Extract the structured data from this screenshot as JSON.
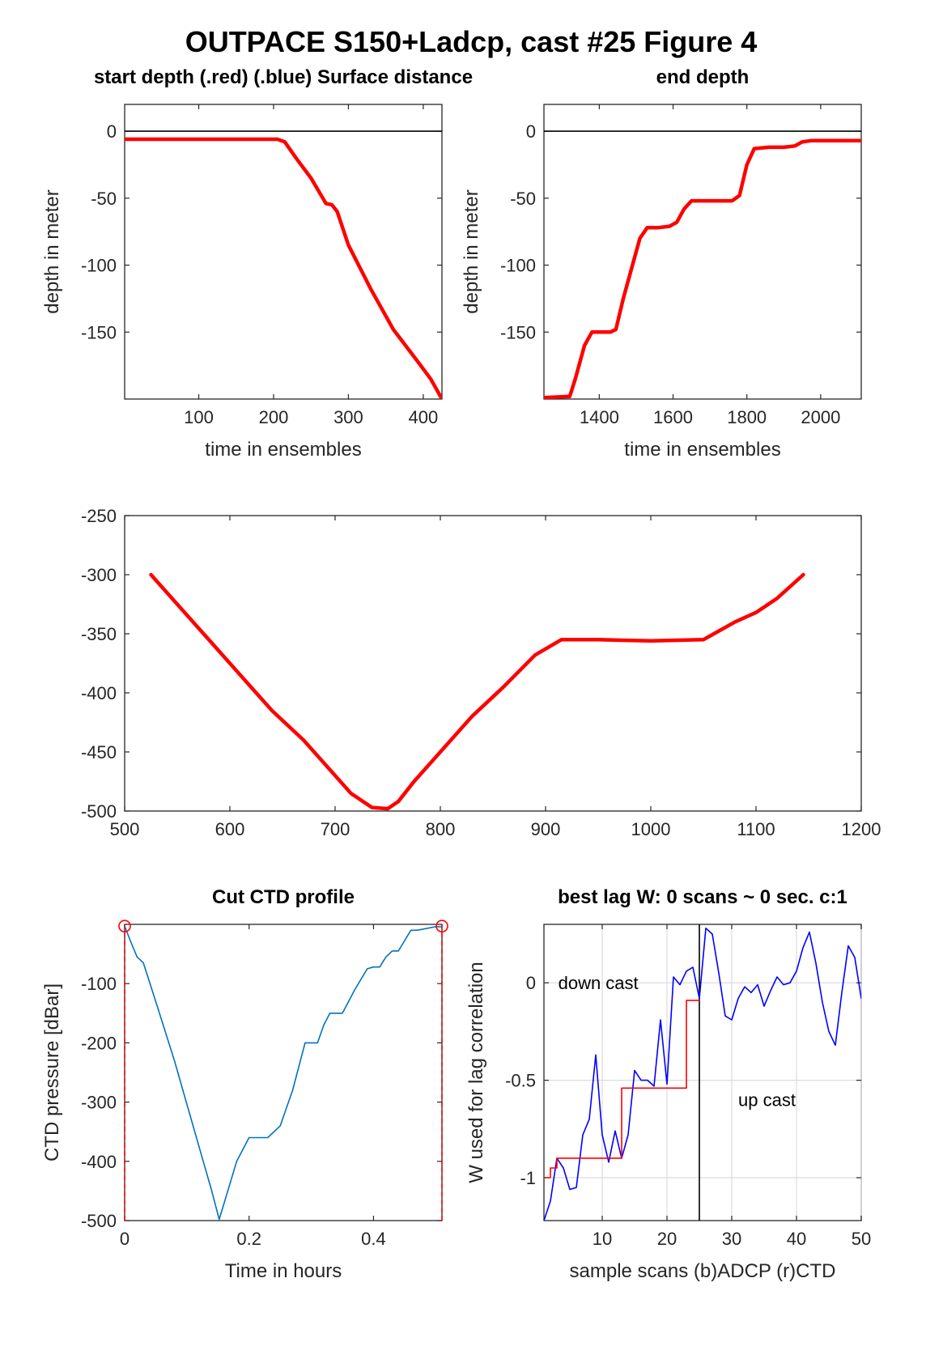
{
  "figure": {
    "title": "OUTPACE S150+Ladcp, cast #25   Figure 4"
  },
  "chart_data": [
    {
      "id": "start_depth",
      "type": "line",
      "title": "start depth (.red) (.blue) Surface distance",
      "xlabel": "time in ensembles",
      "ylabel": "depth in meter",
      "xlim": [
        1,
        425
      ],
      "ylim": [
        -200,
        20
      ],
      "xticks": [
        100,
        200,
        300,
        400
      ],
      "yticks": [
        0,
        -50,
        -100,
        -150
      ],
      "ref_line": 0,
      "series": [
        {
          "color": "#ff0000",
          "x": [
            1,
            100,
            205,
            215,
            230,
            250,
            270,
            278,
            285,
            300,
            330,
            360,
            390,
            410,
            425
          ],
          "y": [
            -6,
            -6,
            -6,
            -8,
            -20,
            -35,
            -54,
            -55,
            -60,
            -85,
            -118,
            -148,
            -170,
            -185,
            -200
          ]
        }
      ]
    },
    {
      "id": "end_depth",
      "type": "line",
      "title": "end depth",
      "xlabel": "time in ensembles",
      "ylabel": "depth in meter",
      "xlim": [
        1250,
        2110
      ],
      "ylim": [
        -200,
        20
      ],
      "xticks": [
        1400,
        1600,
        1800,
        2000
      ],
      "yticks": [
        0,
        -50,
        -100,
        -150
      ],
      "ref_line": 0,
      "series": [
        {
          "color": "#ff0000",
          "x": [
            1250,
            1320,
            1335,
            1360,
            1380,
            1400,
            1430,
            1445,
            1465,
            1490,
            1510,
            1530,
            1560,
            1590,
            1610,
            1630,
            1650,
            1680,
            1720,
            1760,
            1780,
            1800,
            1820,
            1860,
            1900,
            1930,
            1950,
            1975,
            2000,
            2110
          ],
          "y": [
            -199,
            -198,
            -185,
            -160,
            -150,
            -150,
            -150,
            -148,
            -125,
            -100,
            -80,
            -72,
            -72,
            -71,
            -68,
            -58,
            -52,
            -52,
            -52,
            -52,
            -48,
            -25,
            -13,
            -12,
            -12,
            -11,
            -8,
            -7,
            -7,
            -7
          ]
        }
      ]
    },
    {
      "id": "position",
      "type": "line",
      "title": "",
      "xlabel": "",
      "ylabel": "",
      "xlim": [
        500,
        1200
      ],
      "ylim": [
        -500,
        -250
      ],
      "xticks": [
        500,
        600,
        700,
        800,
        900,
        1000,
        1100,
        1200
      ],
      "yticks": [
        -250,
        -300,
        -350,
        -400,
        -450,
        -500
      ],
      "series": [
        {
          "color": "#ff0000",
          "x": [
            525,
            545,
            570,
            600,
            620,
            640,
            670,
            695,
            715,
            735,
            750,
            760,
            775,
            800,
            830,
            860,
            890,
            915,
            950,
            1000,
            1050,
            1060,
            1080,
            1100,
            1120,
            1145
          ],
          "y": [
            -300,
            -320,
            -345,
            -375,
            -395,
            -415,
            -440,
            -465,
            -485,
            -497,
            -498,
            -492,
            -475,
            -450,
            -420,
            -395,
            -368,
            -355,
            -355,
            -356,
            -355,
            -350,
            -340,
            -332,
            -320,
            -300
          ]
        }
      ]
    },
    {
      "id": "cut_ctd",
      "type": "line",
      "title": "Cut CTD profile",
      "xlabel": "Time in hours",
      "ylabel": "CTD pressure [dBar]",
      "xlim": [
        0,
        0.51
      ],
      "ylim": [
        -500,
        0
      ],
      "xticks": [
        0,
        0.2,
        0.4
      ],
      "yticks": [
        -100,
        -200,
        -300,
        -400,
        -500
      ],
      "series": [
        {
          "color": "#0072bd",
          "x": [
            0,
            0.01,
            0.02,
            0.03,
            0.05,
            0.08,
            0.11,
            0.14,
            0.152,
            0.16,
            0.18,
            0.2,
            0.23,
            0.25,
            0.27,
            0.29,
            0.31,
            0.32,
            0.33,
            0.35,
            0.36,
            0.37,
            0.39,
            0.4,
            0.41,
            0.42,
            0.43,
            0.44,
            0.46,
            0.47,
            0.5,
            0.51
          ],
          "y": [
            -3,
            -30,
            -55,
            -65,
            -130,
            -230,
            -340,
            -450,
            -498,
            -470,
            -400,
            -360,
            -360,
            -340,
            -280,
            -200,
            -200,
            -170,
            -150,
            -150,
            -130,
            -110,
            -75,
            -72,
            -72,
            -55,
            -45,
            -45,
            -10,
            -10,
            -4,
            -4
          ]
        }
      ],
      "markers": [
        {
          "x": 0,
          "y": -3
        },
        {
          "x": 0.51,
          "y": -3
        }
      ]
    },
    {
      "id": "lag",
      "type": "line",
      "title": "best lag W: 0 scans ~ 0 sec.  c:1",
      "xlabel": "sample scans (b)ADCP (r)CTD",
      "ylabel": "W used for lag correlation",
      "xlim": [
        1,
        50
      ],
      "ylim": [
        -1.22,
        0.3
      ],
      "xticks": [
        10,
        20,
        30,
        40,
        50
      ],
      "yticks": [
        0,
        -0.5,
        -1
      ],
      "vline": 25,
      "annotations": [
        {
          "text": "down cast",
          "x": 3.2,
          "y": 0
        },
        {
          "text": "up cast",
          "x": 31,
          "y": -0.6
        }
      ],
      "series": [
        {
          "name": "ADCP",
          "color": "#0000ff",
          "x": [
            1,
            2,
            3,
            4,
            5,
            6,
            7,
            8,
            9,
            10,
            11,
            12,
            13,
            14,
            15,
            16,
            17,
            18,
            19,
            20,
            21,
            22,
            23,
            24,
            25,
            26,
            27,
            28,
            29,
            30,
            31,
            32,
            33,
            34,
            35,
            36,
            37,
            38,
            39,
            40,
            41,
            42,
            43,
            44,
            45,
            46,
            47,
            48,
            49,
            50
          ],
          "y": [
            -1.22,
            -1.12,
            -0.9,
            -0.95,
            -1.06,
            -1.05,
            -0.78,
            -0.7,
            -0.37,
            -0.78,
            -0.92,
            -0.76,
            -0.9,
            -0.78,
            -0.45,
            -0.5,
            -0.5,
            -0.53,
            -0.19,
            -0.52,
            0.03,
            -0.01,
            0.06,
            0.08,
            -0.08,
            0.28,
            0.25,
            0.05,
            -0.17,
            -0.19,
            -0.08,
            -0.02,
            -0.05,
            -0.01,
            -0.12,
            -0.04,
            0.03,
            -0.01,
            0.0,
            0.06,
            0.18,
            0.26,
            0.1,
            -0.1,
            -0.25,
            -0.32,
            -0.05,
            0.19,
            0.13,
            -0.08
          ]
        },
        {
          "name": "CTD",
          "color": "#ff0000",
          "x": [
            1,
            2,
            2,
            3,
            3,
            13,
            13,
            23,
            23,
            25
          ],
          "y": [
            -1.0,
            -1.0,
            -0.95,
            -0.95,
            -0.9,
            -0.9,
            -0.54,
            -0.54,
            -0.09,
            -0.09
          ]
        }
      ]
    }
  ]
}
